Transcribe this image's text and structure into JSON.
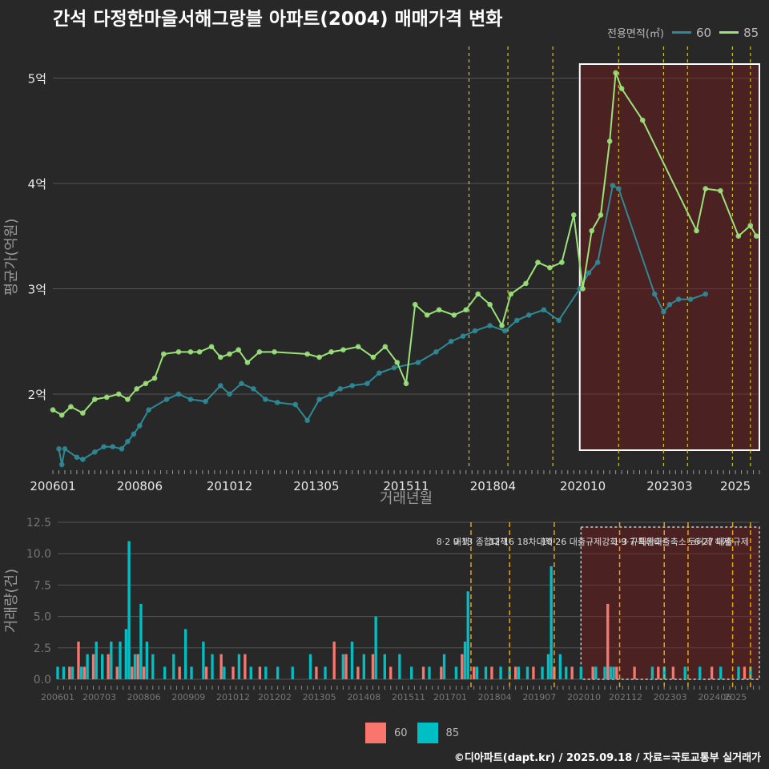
{
  "title": "간석 다정한마을서해그랑블 아파트(2004) 매매가격 변화",
  "legend_top": {
    "title": "전용면적(㎡)",
    "items": [
      {
        "label": "60",
        "color": "#2e8a96"
      },
      {
        "label": "85",
        "color": "#9be27a"
      }
    ]
  },
  "legend_bottom": {
    "items": [
      {
        "label": "60",
        "color": "#f8766d"
      },
      {
        "label": "85",
        "color": "#00bfc4"
      }
    ]
  },
  "credit": "©디아파트(dapt.kr) / 2025.09.18 / 자료=국토교통부 실거래가",
  "chart_data": [
    {
      "type": "line",
      "xlabel": "거래년월",
      "ylabel": "평균가(억원)",
      "ylim": [
        1.3,
        5.3
      ],
      "yticks": [
        2,
        3,
        4,
        5
      ],
      "ytick_labels": [
        "2억",
        "3억",
        "4억",
        "5억"
      ],
      "xtick_labels": [
        "200601",
        "200806",
        "201012",
        "201305",
        "201511",
        "201804",
        "202010",
        "202303",
        "2025"
      ],
      "highlight_box": {
        "from": "2020-09",
        "to": "2025-09",
        "label": ""
      },
      "vlines": [
        "2017-08",
        "2018-09",
        "2019-12",
        "2021-10",
        "2023-01",
        "2023-09",
        "2024-12",
        "2025-06"
      ],
      "series": [
        {
          "name": "60",
          "color": "#2e8a96",
          "points": [
            [
              "2006-03",
              1.48
            ],
            [
              "2006-04",
              1.33
            ],
            [
              "2006-05",
              1.48
            ],
            [
              "2006-09",
              1.4
            ],
            [
              "2006-11",
              1.38
            ],
            [
              "2007-03",
              1.45
            ],
            [
              "2007-06",
              1.5
            ],
            [
              "2007-09",
              1.5
            ],
            [
              "2007-12",
              1.48
            ],
            [
              "2008-02",
              1.55
            ],
            [
              "2008-04",
              1.62
            ],
            [
              "2008-06",
              1.7
            ],
            [
              "2008-09",
              1.85
            ],
            [
              "2009-03",
              1.95
            ],
            [
              "2009-07",
              2.0
            ],
            [
              "2009-11",
              1.95
            ],
            [
              "2010-04",
              1.93
            ],
            [
              "2010-09",
              2.08
            ],
            [
              "2010-12",
              2.0
            ],
            [
              "2011-04",
              2.1
            ],
            [
              "2011-08",
              2.05
            ],
            [
              "2011-12",
              1.95
            ],
            [
              "2012-04",
              1.92
            ],
            [
              "2012-10",
              1.9
            ],
            [
              "2013-02",
              1.75
            ],
            [
              "2013-06",
              1.95
            ],
            [
              "2013-10",
              2.0
            ],
            [
              "2014-01",
              2.05
            ],
            [
              "2014-05",
              2.08
            ],
            [
              "2014-10",
              2.1
            ],
            [
              "2015-02",
              2.2
            ],
            [
              "2015-07",
              2.25
            ],
            [
              "2016-03",
              2.3
            ],
            [
              "2016-09",
              2.4
            ],
            [
              "2017-02",
              2.5
            ],
            [
              "2017-06",
              2.55
            ],
            [
              "2017-10",
              2.6
            ],
            [
              "2018-03",
              2.65
            ],
            [
              "2018-08",
              2.6
            ],
            [
              "2018-12",
              2.7
            ],
            [
              "2019-04",
              2.75
            ],
            [
              "2019-09",
              2.8
            ],
            [
              "2020-02",
              2.7
            ],
            [
              "2020-09",
              3.0
            ],
            [
              "2020-12",
              3.15
            ],
            [
              "2021-03",
              3.25
            ],
            [
              "2021-08",
              3.98
            ],
            [
              "2021-10",
              3.95
            ],
            [
              "2022-10",
              2.95
            ],
            [
              "2023-01",
              2.78
            ],
            [
              "2023-03",
              2.85
            ],
            [
              "2023-06",
              2.9
            ],
            [
              "2023-10",
              2.9
            ],
            [
              "2024-03",
              2.95
            ]
          ]
        },
        {
          "name": "85",
          "color": "#9be27a",
          "points": [
            [
              "2006-01",
              1.85
            ],
            [
              "2006-04",
              1.8
            ],
            [
              "2006-07",
              1.88
            ],
            [
              "2006-11",
              1.82
            ],
            [
              "2007-03",
              1.95
            ],
            [
              "2007-07",
              1.97
            ],
            [
              "2007-11",
              2.0
            ],
            [
              "2008-02",
              1.95
            ],
            [
              "2008-05",
              2.05
            ],
            [
              "2008-08",
              2.1
            ],
            [
              "2008-11",
              2.15
            ],
            [
              "2009-02",
              2.38
            ],
            [
              "2009-07",
              2.4
            ],
            [
              "2009-11",
              2.4
            ],
            [
              "2010-02",
              2.4
            ],
            [
              "2010-06",
              2.45
            ],
            [
              "2010-09",
              2.35
            ],
            [
              "2010-12",
              2.38
            ],
            [
              "2011-03",
              2.42
            ],
            [
              "2011-06",
              2.3
            ],
            [
              "2011-10",
              2.4
            ],
            [
              "2012-03",
              2.4
            ],
            [
              "2013-02",
              2.38
            ],
            [
              "2013-06",
              2.35
            ],
            [
              "2013-10",
              2.4
            ],
            [
              "2014-02",
              2.42
            ],
            [
              "2014-07",
              2.45
            ],
            [
              "2014-12",
              2.35
            ],
            [
              "2015-04",
              2.45
            ],
            [
              "2015-08",
              2.3
            ],
            [
              "2015-11",
              2.1
            ],
            [
              "2016-02",
              2.85
            ],
            [
              "2016-06",
              2.75
            ],
            [
              "2016-10",
              2.8
            ],
            [
              "2017-03",
              2.75
            ],
            [
              "2017-07",
              2.8
            ],
            [
              "2017-11",
              2.95
            ],
            [
              "2018-03",
              2.85
            ],
            [
              "2018-07",
              2.65
            ],
            [
              "2018-10",
              2.95
            ],
            [
              "2019-03",
              3.05
            ],
            [
              "2019-07",
              3.25
            ],
            [
              "2019-11",
              3.2
            ],
            [
              "2020-03",
              3.25
            ],
            [
              "2020-07",
              3.7
            ],
            [
              "2020-10",
              3.0
            ],
            [
              "2021-01",
              3.55
            ],
            [
              "2021-04",
              3.7
            ],
            [
              "2021-07",
              4.4
            ],
            [
              "2021-09",
              5.05
            ],
            [
              "2021-11",
              4.9
            ],
            [
              "2022-06",
              4.6
            ],
            [
              "2023-12",
              3.55
            ],
            [
              "2024-03",
              3.95
            ],
            [
              "2024-08",
              3.93
            ],
            [
              "2025-02",
              3.5
            ],
            [
              "2025-06",
              3.6
            ],
            [
              "2025-08",
              3.5
            ]
          ]
        }
      ]
    },
    {
      "type": "bar",
      "stacked": true,
      "ylabel": "거래량(건)",
      "ylim": [
        0,
        12.5
      ],
      "yticks": [
        0.0,
        2.5,
        5.0,
        7.5,
        10.0,
        12.5
      ],
      "ytick_labels": [
        "0.0",
        "2.5",
        "5.0",
        "7.5",
        "10.0",
        "12.5"
      ],
      "xtick_labels": [
        "200601",
        "200703",
        "200806",
        "200909",
        "201012",
        "201202",
        "201305",
        "201408",
        "201511",
        "201701",
        "201804",
        "201907",
        "202010",
        "202112",
        "202303",
        "202406",
        "2025"
      ],
      "highlight_box": {
        "from": "2020-09",
        "to": "2025-09"
      },
      "policy_lines": [
        {
          "date": "2017-08",
          "label": "8·2 대책"
        },
        {
          "date": "2018-09",
          "label": "9·13 종합대책"
        },
        {
          "date": "2019-12",
          "label": "12·16 18차대책"
        },
        {
          "date": "2021-10",
          "label": "10·26 대출규제강화"
        },
        {
          "date": "2023-01",
          "label": "1·3 규제완화"
        },
        {
          "date": "2023-09",
          "label": "9·7 특례대출축소"
        },
        {
          "date": "2024-12",
          "label": "토허제 해제"
        },
        {
          "date": "2025-06",
          "label": "6·27 대출규제"
        }
      ],
      "series": [
        {
          "name": "60",
          "color": "#f8766d",
          "values": [
            [
              "2006-05",
              1
            ],
            [
              "2006-08",
              3
            ],
            [
              "2006-10",
              1
            ],
            [
              "2007-01",
              2
            ],
            [
              "2007-06",
              2
            ],
            [
              "2007-09",
              1
            ],
            [
              "2008-02",
              1
            ],
            [
              "2008-04",
              2
            ],
            [
              "2008-06",
              1
            ],
            [
              "2009-06",
              1
            ],
            [
              "2010-03",
              1
            ],
            [
              "2010-08",
              2
            ],
            [
              "2010-12",
              1
            ],
            [
              "2011-04",
              2
            ],
            [
              "2011-09",
              1
            ],
            [
              "2013-04",
              1
            ],
            [
              "2013-10",
              3
            ],
            [
              "2014-02",
              2
            ],
            [
              "2014-06",
              1
            ],
            [
              "2014-11",
              2
            ],
            [
              "2015-05",
              1
            ],
            [
              "2016-04",
              1
            ],
            [
              "2016-10",
              1
            ],
            [
              "2017-05",
              2
            ],
            [
              "2017-09",
              1
            ],
            [
              "2018-03",
              1
            ],
            [
              "2018-11",
              1
            ],
            [
              "2019-05",
              1
            ],
            [
              "2019-12",
              1
            ],
            [
              "2020-06",
              1
            ],
            [
              "2021-01",
              1
            ],
            [
              "2021-06",
              6
            ],
            [
              "2021-09",
              1
            ],
            [
              "2022-03",
              1
            ],
            [
              "2022-11",
              1
            ],
            [
              "2023-04",
              1
            ],
            [
              "2024-05",
              1
            ],
            [
              "2025-04",
              1
            ]
          ]
        },
        {
          "name": "85",
          "color": "#00bfc4",
          "values": [
            [
              "2006-01",
              1
            ],
            [
              "2006-03",
              1
            ],
            [
              "2006-06",
              1
            ],
            [
              "2006-09",
              1
            ],
            [
              "2006-11",
              2
            ],
            [
              "2007-02",
              3
            ],
            [
              "2007-04",
              2
            ],
            [
              "2007-07",
              3
            ],
            [
              "2007-10",
              3
            ],
            [
              "2007-12",
              4
            ],
            [
              "2008-01",
              11
            ],
            [
              "2008-03",
              2
            ],
            [
              "2008-05",
              6
            ],
            [
              "2008-07",
              3
            ],
            [
              "2008-09",
              2
            ],
            [
              "2009-01",
              1
            ],
            [
              "2009-04",
              2
            ],
            [
              "2009-08",
              4
            ],
            [
              "2009-10",
              1
            ],
            [
              "2010-02",
              3
            ],
            [
              "2010-05",
              2
            ],
            [
              "2010-09",
              1
            ],
            [
              "2011-02",
              2
            ],
            [
              "2011-06",
              1
            ],
            [
              "2011-11",
              1
            ],
            [
              "2012-03",
              1
            ],
            [
              "2012-08",
              1
            ],
            [
              "2013-02",
              2
            ],
            [
              "2013-07",
              1
            ],
            [
              "2014-01",
              2
            ],
            [
              "2014-04",
              3
            ],
            [
              "2014-08",
              2
            ],
            [
              "2014-12",
              5
            ],
            [
              "2015-03",
              2
            ],
            [
              "2015-08",
              2
            ],
            [
              "2015-12",
              1
            ],
            [
              "2016-06",
              1
            ],
            [
              "2016-11",
              2
            ],
            [
              "2017-03",
              1
            ],
            [
              "2017-06",
              3
            ],
            [
              "2017-07",
              7
            ],
            [
              "2017-10",
              1
            ],
            [
              "2018-01",
              1
            ],
            [
              "2018-06",
              1
            ],
            [
              "2018-09",
              1
            ],
            [
              "2018-12",
              1
            ],
            [
              "2019-03",
              1
            ],
            [
              "2019-08",
              1
            ],
            [
              "2019-10",
              2
            ],
            [
              "2019-11",
              9
            ],
            [
              "2020-02",
              2
            ],
            [
              "2020-04",
              1
            ],
            [
              "2020-09",
              1
            ],
            [
              "2021-02",
              1
            ],
            [
              "2021-05",
              1
            ],
            [
              "2021-07",
              1
            ],
            [
              "2021-08",
              1
            ],
            [
              "2022-09",
              1
            ],
            [
              "2023-01",
              1
            ],
            [
              "2023-08",
              1
            ],
            [
              "2024-01",
              1
            ],
            [
              "2024-08",
              1
            ],
            [
              "2025-02",
              1
            ],
            [
              "2025-06",
              1
            ]
          ]
        }
      ]
    }
  ]
}
